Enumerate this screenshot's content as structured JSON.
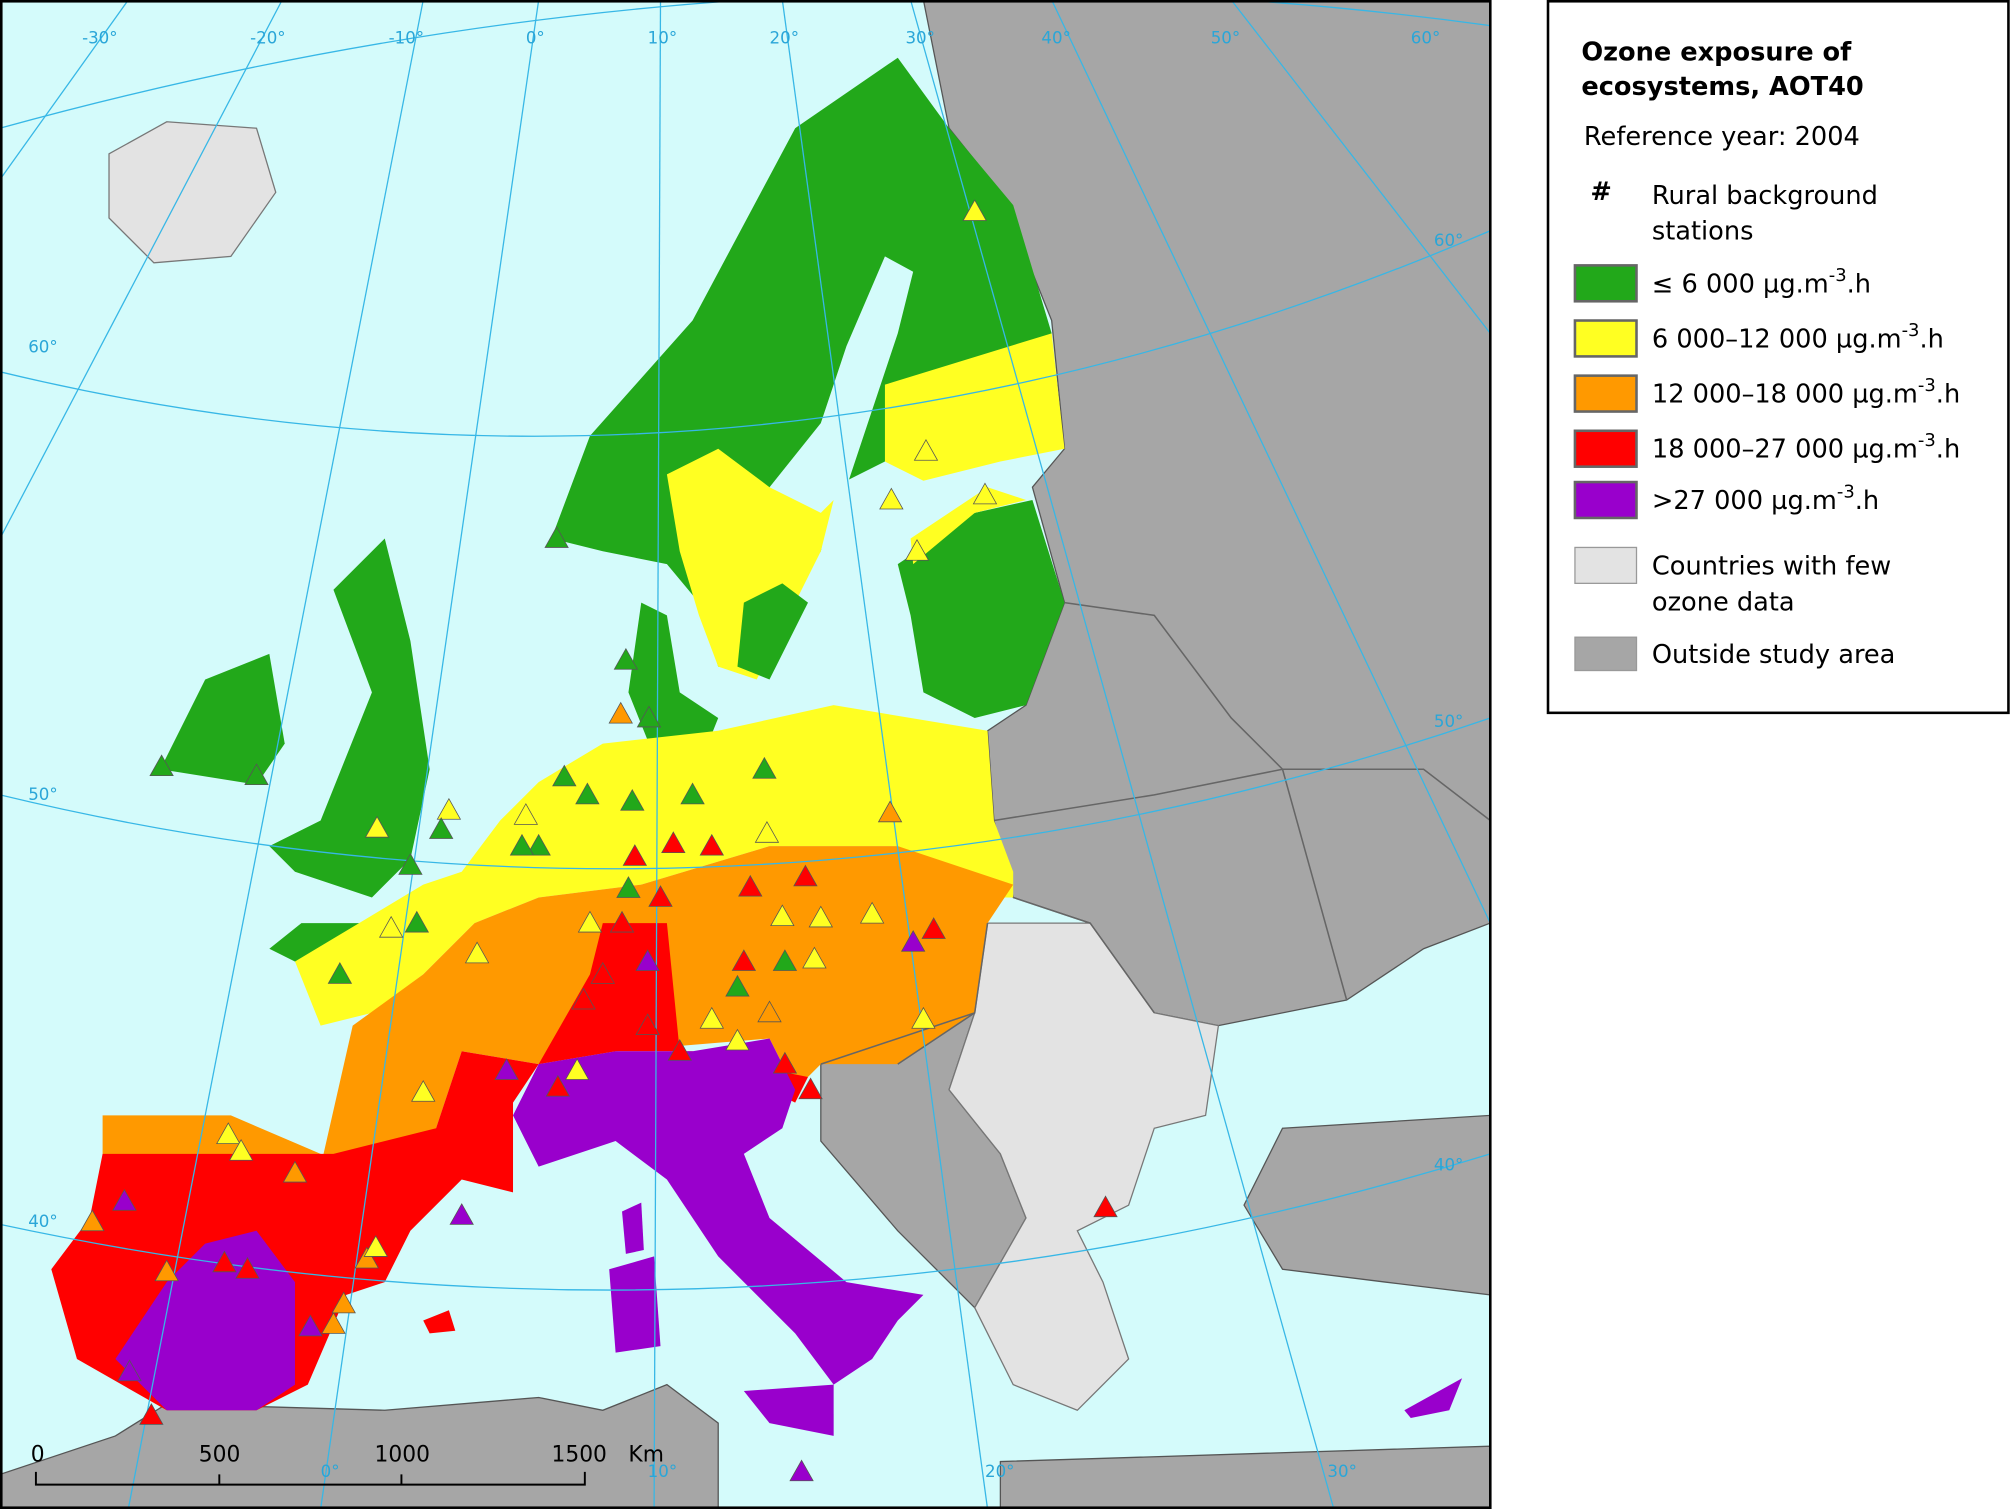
{
  "legend": {
    "title_lines": [
      "Ozone exposure of",
      "ecosystems, AOT40"
    ],
    "subtitle": "Reference year: 2004",
    "stations_label_lines": [
      "Rural background",
      "stations"
    ],
    "items": [
      {
        "color": "#22a81a",
        "label_before": "≤ 6 000 µg.m",
        "superscript": "-3",
        "label_after": ".h"
      },
      {
        "color": "#ffff22",
        "label_before": "6 000–12 000 µg.m",
        "superscript": "-3",
        "label_after": ".h"
      },
      {
        "color": "#ff9900",
        "label_before": "12 000–18 000 µg.m",
        "superscript": "-3",
        "label_after": ".h"
      },
      {
        "color": "#ff0000",
        "label_before": "18 000–27 000 µg.m",
        "superscript": "-3",
        "label_after": ".h"
      },
      {
        "color": "#9900cc",
        "label_before": ">27 000 µg.m",
        "superscript": "-3",
        "label_after": ".h"
      }
    ],
    "few_data": {
      "color": "#e3e3e3",
      "label_lines": [
        "Countries with few",
        "ozone data"
      ]
    },
    "outside": {
      "color": "#a6a6a6",
      "label": "Outside study area"
    }
  },
  "graticule": {
    "top": [
      "-30°",
      "-20°",
      "-10°",
      "0°",
      "10°",
      "20°",
      "30°",
      "40°",
      "50°",
      "60°"
    ],
    "left": [
      "60°",
      "50°",
      "40°"
    ],
    "right": [
      "60°",
      "50°",
      "40°"
    ],
    "bottom": [
      "0°",
      "10°",
      "20°",
      "30°"
    ]
  },
  "scale": {
    "labels": [
      "0",
      "500",
      "1000",
      "1500"
    ],
    "unit": "Km"
  }
}
